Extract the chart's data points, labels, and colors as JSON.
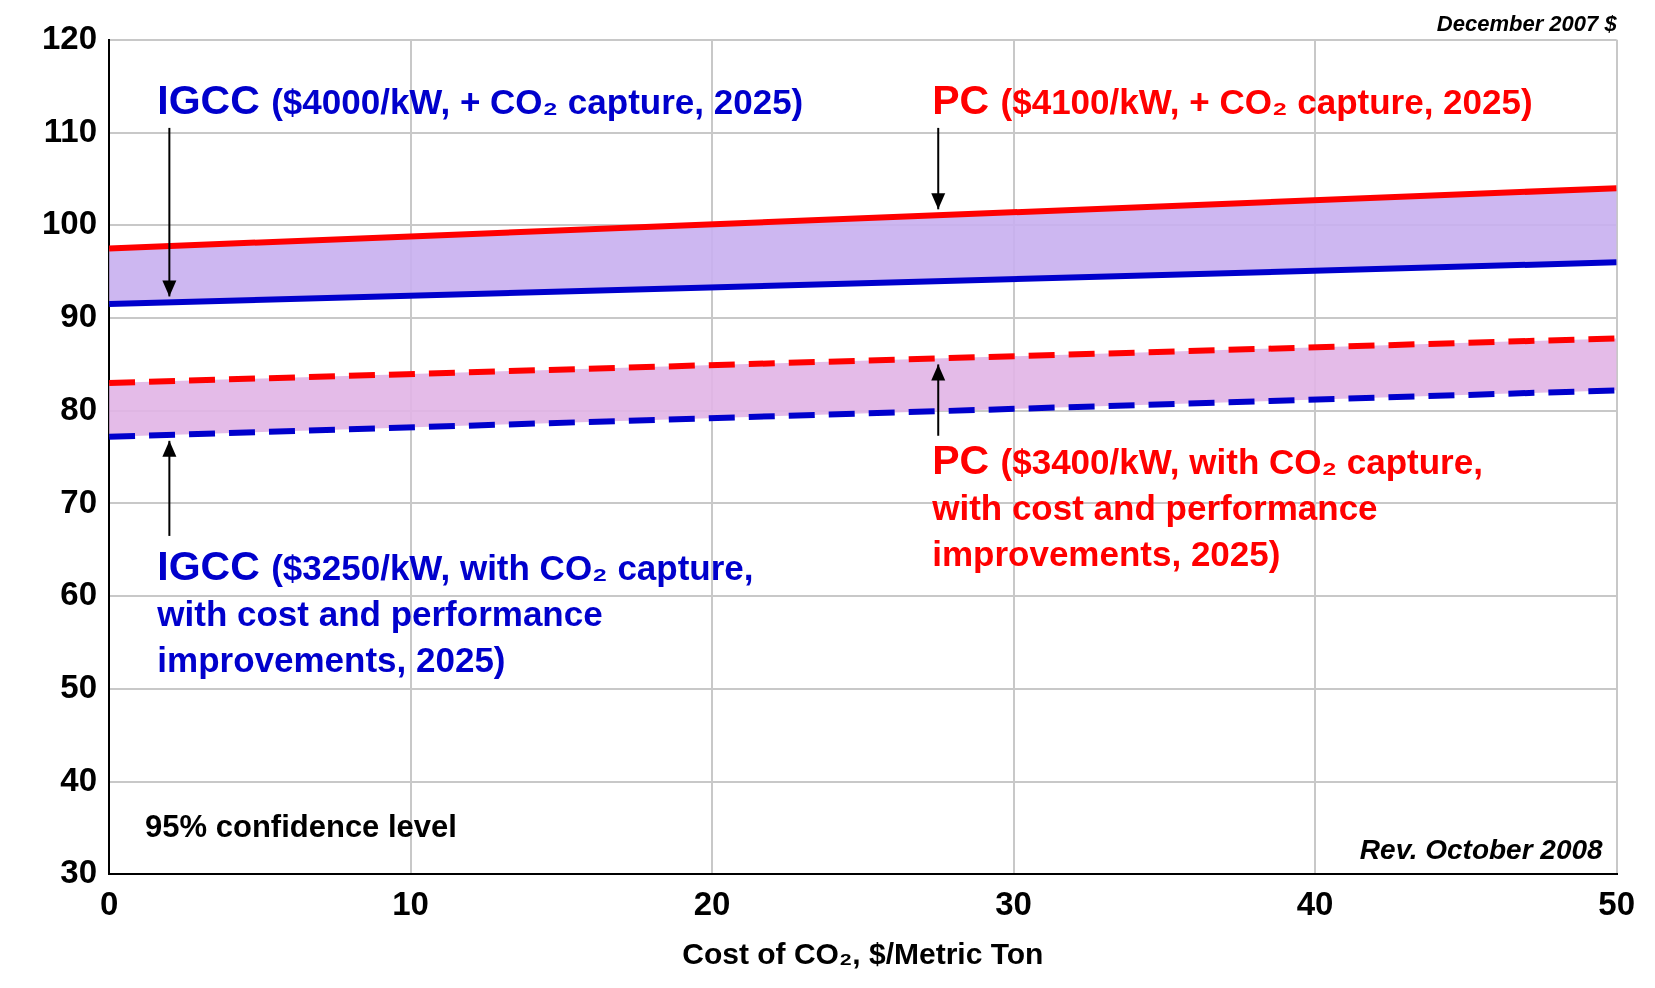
{
  "chart_data": {
    "type": "line",
    "xlabel": "Cost of CO₂, $/Metric Ton",
    "x": [
      0,
      50
    ],
    "series": [
      {
        "name": "IGCC ($4000/kW, + CO₂ capture, 2025)",
        "color": "#0000cc",
        "values": [
          91.5,
          96
        ],
        "line_style": "solid"
      },
      {
        "name": "PC ($4100/kW, + CO₂ capture, 2025)",
        "color": "#ff0000",
        "values": [
          97.5,
          104
        ],
        "line_style": "solid",
        "lower": [
          91.5,
          96
        ],
        "upper": [
          97.5,
          104
        ]
      },
      {
        "name": "IGCC ($3250/kW, with CO₂ capture, with cost and performance improvements, 2025)",
        "color": "#0000cc",
        "values": [
          77.2,
          82.2
        ],
        "line_style": "dashed"
      },
      {
        "name": "PC ($3400/kW, with CO₂ capture, with cost and performance improvements, 2025)",
        "color": "#ff0000",
        "values": [
          83,
          87.8
        ],
        "line_style": "dashed",
        "lower": [
          77.2,
          82.2
        ],
        "upper": [
          83,
          87.8
        ]
      }
    ],
    "annotations": [
      "December 2007 $",
      "95% confidence level",
      "Rev. October 2008"
    ],
    "xlim": [
      0,
      50
    ],
    "xticks": [
      0,
      10,
      20,
      30,
      40,
      50
    ],
    "ylim": [
      30,
      120
    ],
    "yticks": [
      30,
      40,
      50,
      60,
      70,
      80,
      90,
      100,
      110,
      120
    ],
    "grid": true,
    "legend": false,
    "marker": "none"
  }
}
